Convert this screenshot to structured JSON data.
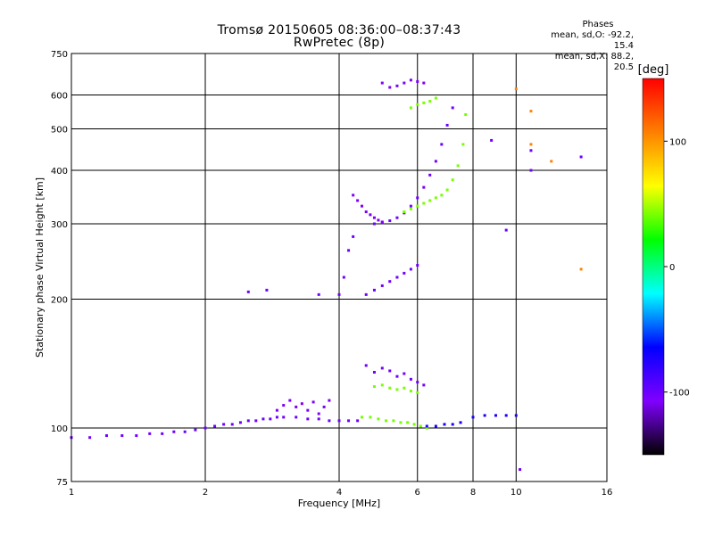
{
  "header": {
    "title": "Tromsø 20150605 08:36:00–08:37:43",
    "subtitle": "RwPretec (8p)"
  },
  "phase_stats": {
    "title": "Phases",
    "line_o": "mean, sd,O: -92.2, 15.4",
    "line_x": "mean, sd,X:  88.2, 20.5"
  },
  "colorbar": {
    "label": "[deg]",
    "ticks": [
      "100",
      "0",
      "-100"
    ],
    "colors": [
      "#ff0000",
      "#ff8000",
      "#ffff00",
      "#00ff00",
      "#00ffff",
      "#0000ff",
      "#8000ff",
      "#000000"
    ]
  },
  "chart_data": {
    "type": "scatter",
    "title": "Tromsø 20150605 08:36:00–08:37:43",
    "subtitle": "RwPretec (8p)",
    "xlabel": "Frequency [MHz]",
    "ylabel": "Stationary phase Virtual Height [km]",
    "x_scale": "log",
    "y_scale": "log",
    "xlim": [
      1,
      16
    ],
    "ylim": [
      75,
      750
    ],
    "x_ticks": [
      "1",
      "2",
      "4",
      "6",
      "8",
      "10",
      "16"
    ],
    "x_tick_values": [
      1,
      2,
      4,
      6,
      8,
      10,
      16
    ],
    "y_ticks": [
      "75",
      "100",
      "200",
      "300",
      "400",
      "500",
      "600",
      "750"
    ],
    "y_tick_values": [
      75,
      100,
      200,
      300,
      400,
      500,
      600,
      750
    ],
    "grid": true,
    "color_scale": "phase [deg], -150 to 150",
    "traces": [
      {
        "name": "",
        "phase": -110,
        "x": [
          1.0,
          1.1,
          1.2,
          1.3,
          1.4,
          1.5,
          1.6,
          1.7,
          1.8,
          1.9,
          2.0,
          2.1,
          2.2,
          2.3,
          2.4,
          2.5,
          2.6,
          2.7,
          2.8,
          2.9,
          3.0,
          3.2,
          3.4,
          3.6,
          3.8,
          4.0,
          4.2,
          4.4
        ],
        "y": [
          95,
          95,
          96,
          96,
          96,
          97,
          97,
          98,
          98,
          99,
          100,
          101,
          102,
          102,
          103,
          104,
          104,
          105,
          105,
          106,
          106,
          106,
          105,
          105,
          104,
          104,
          104,
          104
        ]
      },
      {
        "name": "",
        "phase": -115,
        "x": [
          2.9,
          3.0,
          3.1,
          3.2,
          3.3,
          3.4,
          3.5,
          3.6,
          3.7,
          3.8
        ],
        "y": [
          110,
          113,
          116,
          112,
          114,
          110,
          115,
          108,
          112,
          116
        ]
      },
      {
        "name": "",
        "phase": 60,
        "x": [
          4.5,
          4.7,
          4.9,
          5.1,
          5.3,
          5.5,
          5.7,
          5.9,
          6.1,
          6.3
        ],
        "y": [
          106,
          106,
          105,
          104,
          104,
          103,
          103,
          102,
          101,
          100
        ]
      },
      {
        "name": "",
        "phase": -90,
        "x": [
          6.3,
          6.6,
          6.9,
          7.2,
          7.5,
          8.0,
          8.5,
          9.0,
          9.5,
          10.0
        ],
        "y": [
          101,
          101,
          102,
          102,
          103,
          106,
          107,
          107,
          107,
          107
        ]
      },
      {
        "name": "",
        "phase": -110,
        "x": [
          4.8,
          5.0,
          5.2,
          5.4,
          5.6,
          5.8,
          6.0,
          6.2,
          6.4,
          6.6,
          6.8,
          7.0,
          7.2
        ],
        "y": [
          300,
          302,
          305,
          310,
          318,
          330,
          345,
          365,
          390,
          420,
          460,
          510,
          560
        ]
      },
      {
        "name": "",
        "phase": 60,
        "x": [
          5.6,
          5.8,
          6.0,
          6.2,
          6.4,
          6.6,
          6.8,
          7.0,
          7.2,
          7.4,
          7.6,
          7.7
        ],
        "y": [
          320,
          325,
          330,
          335,
          340,
          345,
          350,
          360,
          380,
          410,
          460,
          540
        ]
      },
      {
        "name": "",
        "phase": -115,
        "x": [
          4.3,
          4.4,
          4.5,
          4.6,
          4.7,
          4.8,
          4.9,
          5.0
        ],
        "y": [
          350,
          340,
          330,
          320,
          315,
          310,
          306,
          303
        ]
      },
      {
        "name": "",
        "phase": -115,
        "x": [
          5.0,
          5.2,
          5.4,
          5.6,
          5.8,
          6.0,
          6.2
        ],
        "y": [
          640,
          625,
          630,
          640,
          650,
          645,
          640
        ]
      },
      {
        "name": "",
        "phase": 60,
        "x": [
          5.8,
          6.0,
          6.2,
          6.4,
          6.6
        ],
        "y": [
          560,
          570,
          575,
          580,
          590
        ]
      },
      {
        "name": "",
        "phase": -110,
        "x": [
          4.6,
          4.8,
          5.0,
          5.2,
          5.4,
          5.6,
          5.8,
          6.0
        ],
        "y": [
          205,
          210,
          215,
          220,
          225,
          230,
          235,
          240
        ]
      },
      {
        "name": "",
        "phase": -110,
        "x": [
          4.6,
          4.8,
          5.0,
          5.2,
          5.4,
          5.6,
          5.8,
          6.0,
          6.2
        ],
        "y": [
          140,
          135,
          138,
          136,
          132,
          134,
          130,
          128,
          126
        ]
      },
      {
        "name": "",
        "phase": 60,
        "x": [
          4.8,
          5.0,
          5.2,
          5.4,
          5.6,
          5.8,
          6.0
        ],
        "y": [
          125,
          126,
          124,
          123,
          124,
          122,
          121
        ]
      },
      {
        "name": "",
        "phase": -110,
        "x": [
          2.5,
          2.75,
          3.6,
          4.0,
          4.1,
          4.2,
          4.3
        ],
        "y": [
          208,
          210,
          205,
          205,
          225,
          260,
          280
        ]
      },
      {
        "name": "",
        "phase": 120,
        "x": [
          10.0,
          10.8,
          10.8,
          12.0,
          14.0
        ],
        "y": [
          620,
          550,
          460,
          420,
          235
        ]
      },
      {
        "name": "",
        "phase": -110,
        "x": [
          10.8,
          10.8,
          14.0,
          9.5,
          8.8,
          10.2
        ],
        "y": [
          445,
          400,
          430,
          290,
          470,
          80
        ]
      }
    ]
  }
}
